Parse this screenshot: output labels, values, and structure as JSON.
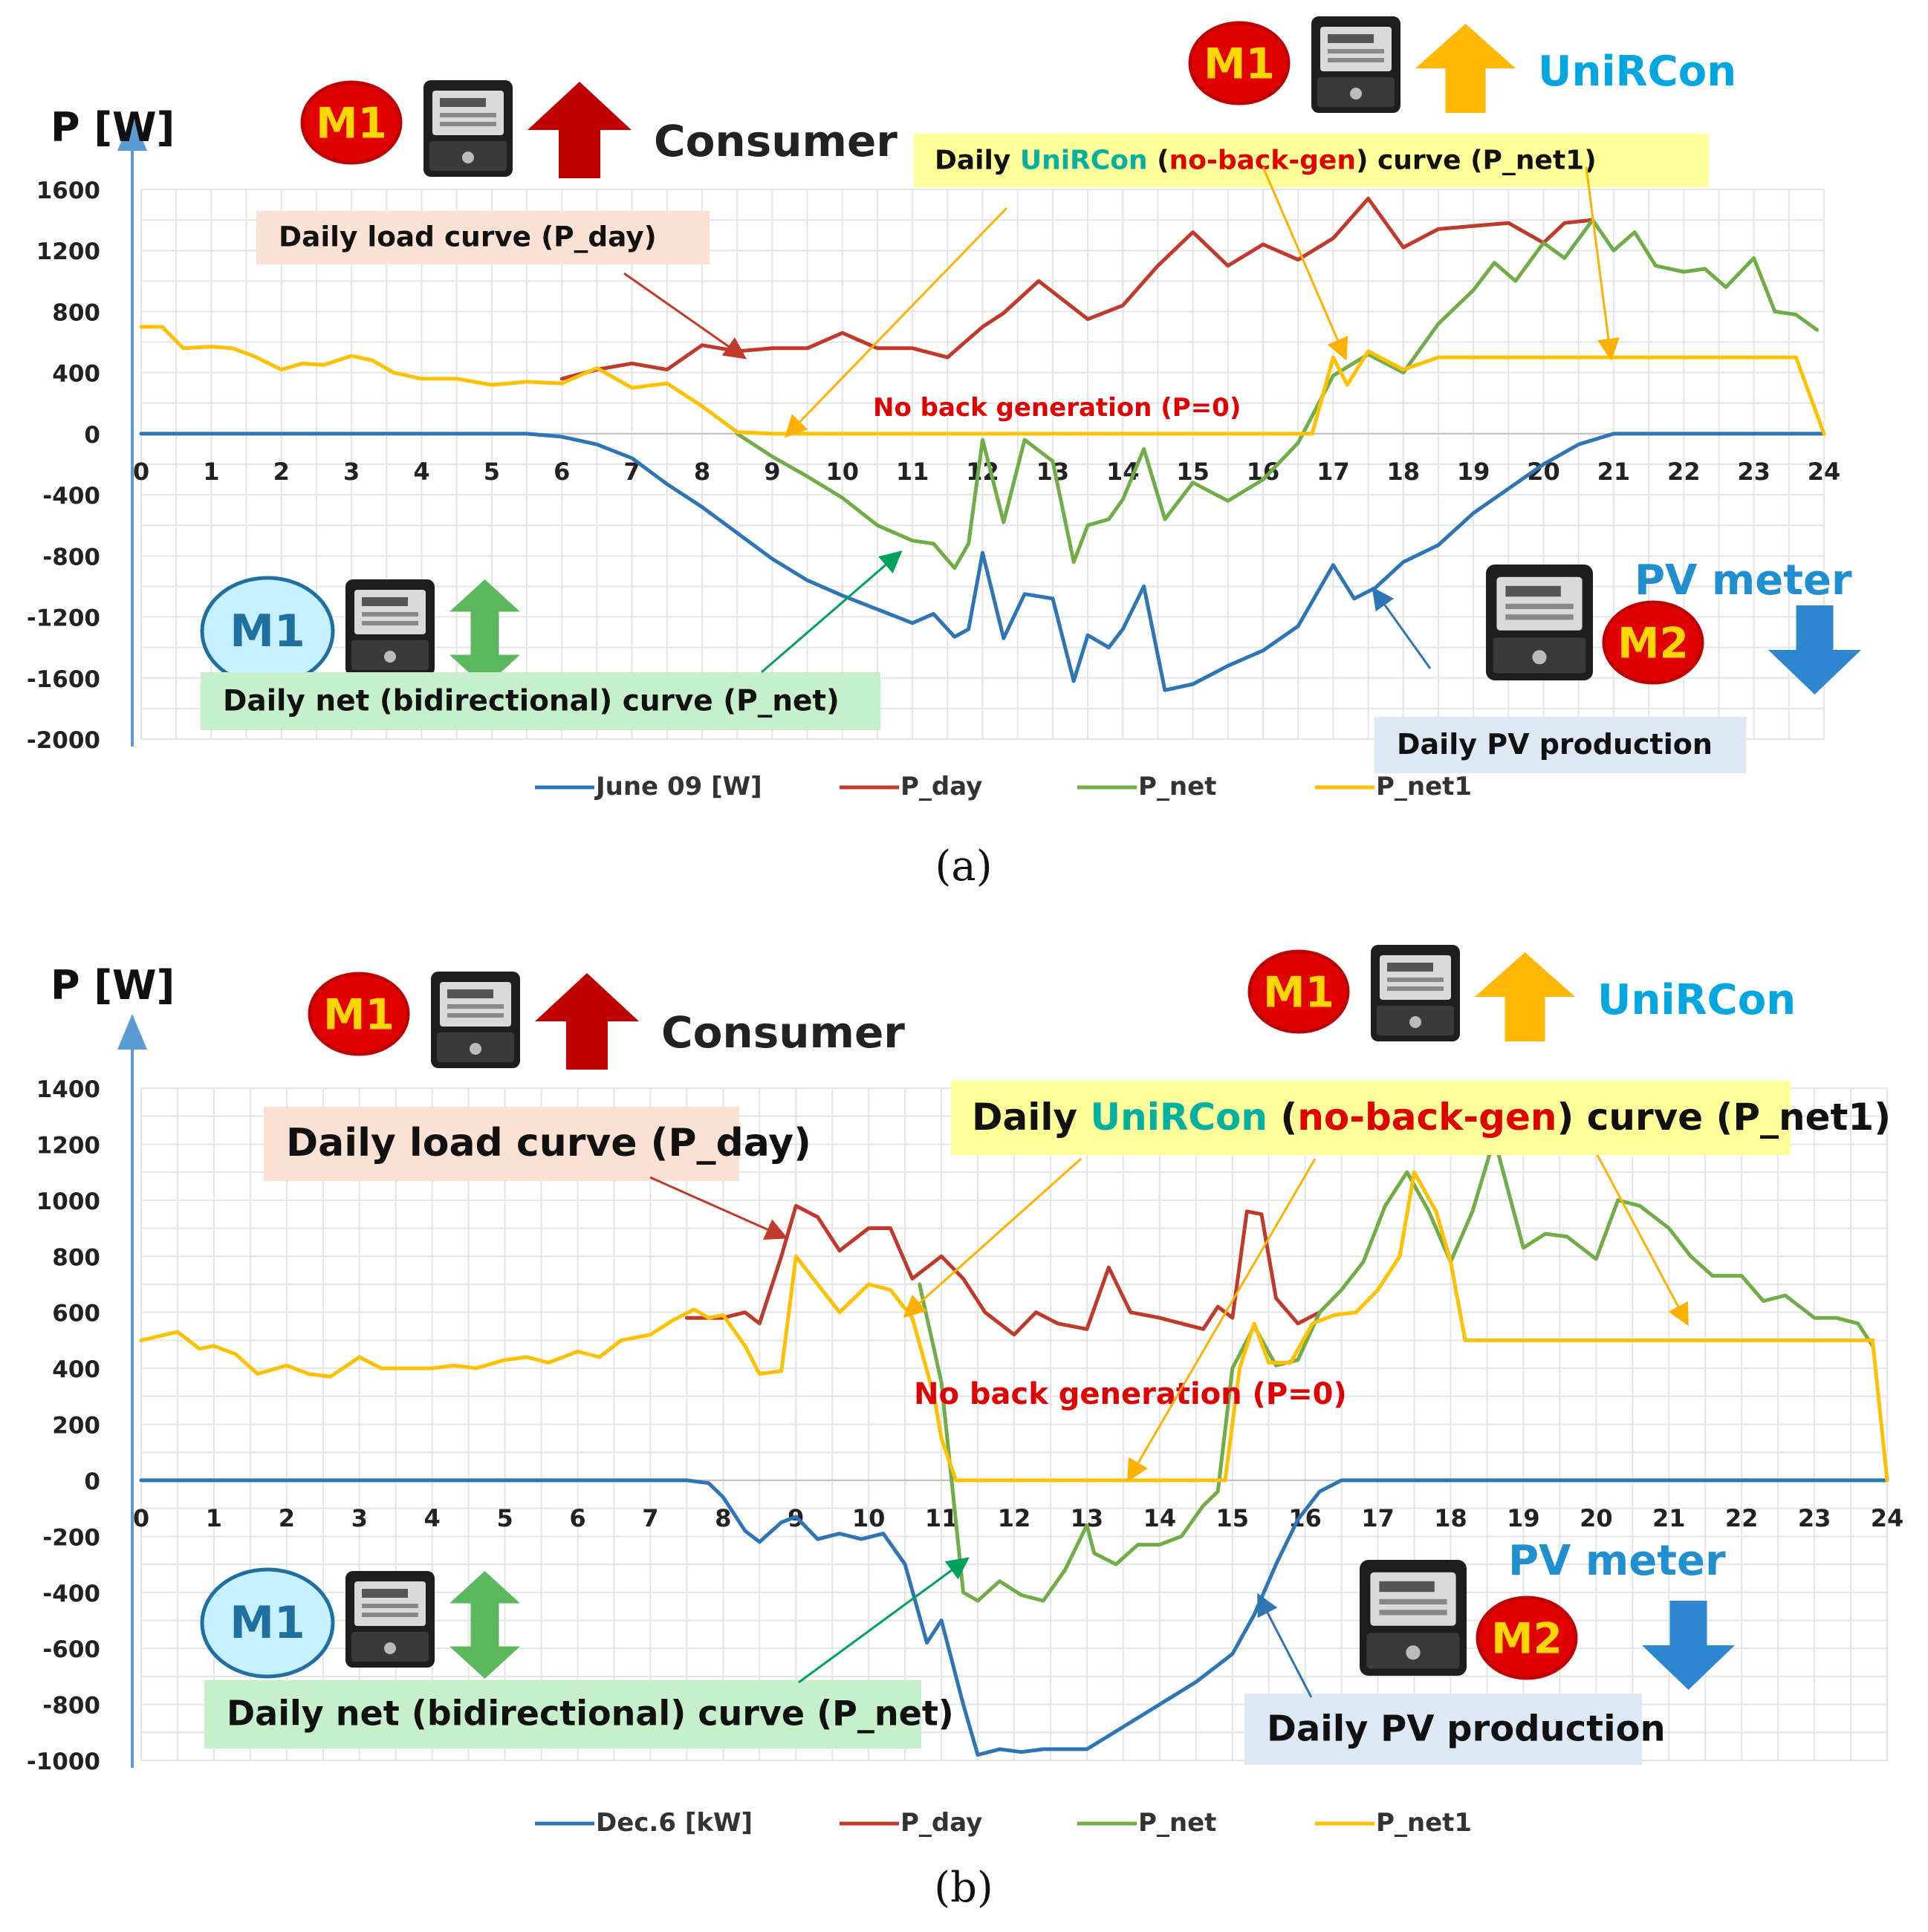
{
  "chart_data": [
    {
      "type": "line",
      "panel": "(a)",
      "ylabel": "P [W]",
      "ylim": [
        -2000,
        1600
      ],
      "yticks": [
        1600,
        1200,
        800,
        400,
        0,
        -400,
        -800,
        -1200,
        -1600,
        -2000
      ],
      "xlim": [
        0,
        24
      ],
      "xticks": [
        0,
        1,
        2,
        3,
        4,
        5,
        6,
        7,
        8,
        9,
        10,
        11,
        12,
        13,
        14,
        15,
        16,
        17,
        18,
        19,
        20,
        21,
        22,
        23,
        24
      ],
      "grid": true,
      "legend": [
        "June 09 [W]",
        "P_day",
        "P_net",
        "P_net1"
      ],
      "series": [
        {
          "name": "June 09 [W]",
          "color": "#2e75b6",
          "x": [
            0,
            5.5,
            6,
            6.5,
            7,
            7.5,
            8,
            8.5,
            9,
            9.5,
            10,
            10.5,
            11,
            11.3,
            11.6,
            11.8,
            12,
            12.3,
            12.6,
            13,
            13.3,
            13.5,
            13.8,
            14,
            14.3,
            14.6,
            15,
            15.5,
            16,
            16.5,
            17,
            17.3,
            17.6,
            18,
            18.5,
            19,
            19.5,
            20,
            20.5,
            21,
            24
          ],
          "y": [
            0,
            0,
            -20,
            -70,
            -160,
            -330,
            -480,
            -650,
            -820,
            -960,
            -1060,
            -1150,
            -1240,
            -1180,
            -1330,
            -1280,
            -780,
            -1340,
            -1050,
            -1080,
            -1620,
            -1320,
            -1400,
            -1280,
            -1000,
            -1680,
            -1640,
            -1520,
            -1420,
            -1260,
            -860,
            -1080,
            -1010,
            -840,
            -730,
            -520,
            -360,
            -200,
            -70,
            0,
            0
          ]
        },
        {
          "name": "P_day",
          "color": "#c0392b",
          "x": [
            6,
            6.5,
            7,
            7.5,
            8,
            8.5,
            9,
            9.5,
            10,
            10.5,
            11,
            11.5,
            12,
            12.3,
            12.8,
            13.5,
            14,
            14.5,
            15,
            15.5,
            16,
            16.5,
            17,
            17.5,
            18,
            18.5,
            19,
            19.5,
            20,
            20.3,
            20.7
          ],
          "y": [
            360,
            420,
            460,
            420,
            580,
            540,
            560,
            560,
            660,
            560,
            560,
            500,
            700,
            790,
            1000,
            750,
            840,
            1100,
            1320,
            1100,
            1240,
            1140,
            1280,
            1540,
            1220,
            1340,
            1360,
            1380,
            1250,
            1380,
            1400
          ]
        },
        {
          "name": "P_net",
          "color": "#70ad47",
          "x": [
            8.5,
            9,
            9.5,
            10,
            10.5,
            11,
            11.3,
            11.6,
            11.8,
            12,
            12.3,
            12.6,
            13,
            13.3,
            13.5,
            13.8,
            14,
            14.3,
            14.6,
            15,
            15.5,
            16,
            16.5,
            17,
            17.5,
            18,
            18.5,
            19,
            19.3,
            19.6,
            20,
            20.3,
            20.7,
            21,
            21.3,
            21.6,
            22,
            22.3,
            22.6,
            23,
            23.3,
            23.6,
            23.9
          ],
          "y": [
            0,
            -150,
            -280,
            -420,
            -600,
            -700,
            -720,
            -880,
            -720,
            -40,
            -580,
            -40,
            -180,
            -840,
            -600,
            -560,
            -430,
            -100,
            -560,
            -320,
            -440,
            -300,
            -60,
            380,
            520,
            400,
            720,
            940,
            1120,
            1000,
            1250,
            1150,
            1400,
            1200,
            1320,
            1100,
            1060,
            1080,
            960,
            1150,
            800,
            780,
            680
          ]
        },
        {
          "name": "P_net1",
          "color": "#ffc000",
          "x": [
            0,
            0.3,
            0.6,
            1,
            1.3,
            1.6,
            2,
            2.3,
            2.6,
            3,
            3.3,
            3.6,
            4,
            4.5,
            5,
            5.5,
            6,
            6.5,
            7,
            7.5,
            8,
            8.5,
            9,
            10,
            11,
            12,
            13,
            14,
            15,
            16,
            16.7,
            17,
            17.2,
            17.5,
            18,
            18.5,
            19,
            20,
            21,
            22,
            23,
            23.6,
            24
          ],
          "y": [
            700,
            700,
            560,
            570,
            560,
            510,
            420,
            460,
            450,
            510,
            480,
            400,
            360,
            360,
            320,
            340,
            330,
            430,
            300,
            330,
            180,
            10,
            0,
            0,
            0,
            0,
            0,
            0,
            0,
            0,
            0,
            500,
            320,
            540,
            420,
            500,
            500,
            500,
            500,
            500,
            500,
            500,
            0
          ]
        }
      ],
      "annotations": {
        "meter_top_left": "M1",
        "role_top_left": "Consumer",
        "meter_top_right": "M1",
        "role_top_right": "UniRCon",
        "load_label": "Daily load curve (P_day)",
        "unircon_label_1": "Daily ",
        "unircon_label_2": "UniRCon",
        "unircon_label_3": "  (",
        "unircon_label_4": "no-back-gen",
        "unircon_label_5": ") curve (P_net1)",
        "no_back": "No back generation (P=0)",
        "meter_bottom_left": "M1",
        "net_label": "Daily net (bidirectional) curve (P_net)",
        "pv_meter": "PV meter",
        "meter_bottom_right": "M2",
        "pv_label": "Daily PV production"
      },
      "caption": "(a)"
    },
    {
      "type": "line",
      "panel": "(b)",
      "ylabel": "P [W]",
      "ylim": [
        -1000,
        1400
      ],
      "yticks": [
        1400,
        1200,
        1000,
        800,
        600,
        400,
        200,
        0,
        -200,
        -400,
        -600,
        -800,
        -1000
      ],
      "xlim": [
        0,
        24
      ],
      "xticks": [
        0,
        1,
        2,
        3,
        4,
        5,
        6,
        7,
        8,
        9,
        10,
        11,
        12,
        13,
        14,
        15,
        16,
        17,
        18,
        19,
        20,
        21,
        22,
        23,
        24
      ],
      "grid": true,
      "legend": [
        "Dec.6 [kW]",
        "P_day",
        "P_net",
        "P_net1"
      ],
      "series": [
        {
          "name": "Dec.6 [kW]",
          "color": "#2e75b6",
          "x": [
            0,
            7.5,
            7.8,
            8,
            8.3,
            8.5,
            8.8,
            9,
            9.3,
            9.6,
            9.9,
            10.2,
            10.5,
            10.8,
            11,
            11.3,
            11.5,
            11.8,
            12.1,
            12.4,
            13,
            13.5,
            14,
            14.5,
            15,
            15.3,
            15.6,
            15.9,
            16.2,
            16.5,
            24
          ],
          "y": [
            0,
            0,
            -10,
            -60,
            -180,
            -220,
            -150,
            -130,
            -210,
            -190,
            -210,
            -190,
            -300,
            -580,
            -500,
            -800,
            -980,
            -960,
            -970,
            -960,
            -960,
            -880,
            -800,
            -720,
            -620,
            -480,
            -300,
            -140,
            -40,
            0,
            0
          ]
        },
        {
          "name": "P_day",
          "color": "#c0392b",
          "x": [
            7.5,
            8,
            8.3,
            8.5,
            8.8,
            9,
            9.3,
            9.6,
            10,
            10.3,
            10.6,
            11,
            11.3,
            11.6,
            12,
            12.3,
            12.6,
            13,
            13.3,
            13.6,
            14,
            14.3,
            14.6,
            14.8,
            15,
            15.2,
            15.4,
            15.6,
            15.9,
            16.2
          ],
          "y": [
            580,
            580,
            600,
            560,
            800,
            980,
            940,
            820,
            900,
            900,
            720,
            800,
            720,
            600,
            520,
            600,
            560,
            540,
            760,
            600,
            580,
            560,
            540,
            620,
            580,
            960,
            950,
            650,
            560,
            600
          ]
        },
        {
          "name": "P_net",
          "color": "#70ad47",
          "x": [
            10.7,
            11,
            11.3,
            11.5,
            11.8,
            12.1,
            12.4,
            12.7,
            13,
            13.1,
            13.4,
            13.7,
            14,
            14.3,
            14.6,
            14.8,
            15,
            15.3,
            15.6,
            15.9,
            16.2,
            16.5,
            16.8,
            17.1,
            17.4,
            17.7,
            18,
            18.3,
            18.6,
            19,
            19.3,
            19.6,
            20,
            20.3,
            20.6,
            21,
            21.3,
            21.6,
            22,
            22.3,
            22.6,
            23,
            23.3,
            23.6,
            23.8
          ],
          "y": [
            700,
            350,
            -400,
            -430,
            -360,
            -410,
            -430,
            -320,
            -160,
            -260,
            -300,
            -230,
            -230,
            -200,
            -90,
            -40,
            400,
            550,
            410,
            430,
            600,
            680,
            780,
            980,
            1100,
            960,
            780,
            960,
            1220,
            830,
            880,
            870,
            790,
            1000,
            980,
            900,
            800,
            730,
            730,
            640,
            660,
            580,
            580,
            560,
            480
          ]
        },
        {
          "name": "P_net1",
          "color": "#ffc000",
          "x": [
            0,
            0.5,
            0.8,
            1,
            1.3,
            1.6,
            2,
            2.3,
            2.6,
            3,
            3.3,
            3.6,
            4,
            4.3,
            4.6,
            5,
            5.3,
            5.6,
            6,
            6.3,
            6.6,
            7,
            7.3,
            7.6,
            7.8,
            8,
            8.3,
            8.5,
            8.8,
            9,
            9.3,
            9.6,
            10,
            10.3,
            10.6,
            10.9,
            11,
            11.2,
            11.5,
            12,
            13,
            14,
            14.9,
            15.1,
            15.3,
            15.5,
            15.8,
            16.1,
            16.4,
            16.7,
            17,
            17.3,
            17.5,
            17.8,
            18,
            18.2,
            18.5,
            19,
            20,
            21,
            22,
            23,
            23.8,
            24
          ],
          "y": [
            500,
            530,
            470,
            480,
            450,
            380,
            410,
            380,
            370,
            440,
            400,
            400,
            400,
            410,
            400,
            430,
            440,
            420,
            460,
            440,
            500,
            520,
            570,
            610,
            580,
            590,
            480,
            380,
            390,
            800,
            700,
            600,
            700,
            680,
            580,
            300,
            150,
            0,
            0,
            0,
            0,
            0,
            0,
            400,
            560,
            420,
            420,
            560,
            590,
            600,
            680,
            800,
            1100,
            960,
            780,
            500,
            500,
            500,
            500,
            500,
            500,
            500,
            500,
            0
          ]
        }
      ],
      "annotations": {
        "meter_top_left": "M1",
        "role_top_left": "Consumer",
        "meter_top_right": "M1",
        "role_top_right": "UniRCon",
        "load_label": "Daily load curve (P_day)",
        "unircon_label_1": "Daily ",
        "unircon_label_2": "UniRCon",
        "unircon_label_3": "  (",
        "unircon_label_4": "no-back-gen",
        "unircon_label_5": ") curve (P_net1)",
        "no_back": "No back generation (P=0)",
        "meter_bottom_left": "M1",
        "net_label": "Daily net (bidirectional) curve (P_net)",
        "pv_meter": "PV meter",
        "meter_bottom_right": "M2",
        "pv_label": "Daily PV production"
      },
      "caption": "(b)"
    }
  ],
  "colors": {
    "pv": "#2e75b6",
    "load": "#c0392b",
    "net": "#70ad47",
    "net1": "#ffc000",
    "unircon": "#00b0f0",
    "red_badge": "#e00000",
    "badge_text": "#ffd700"
  }
}
